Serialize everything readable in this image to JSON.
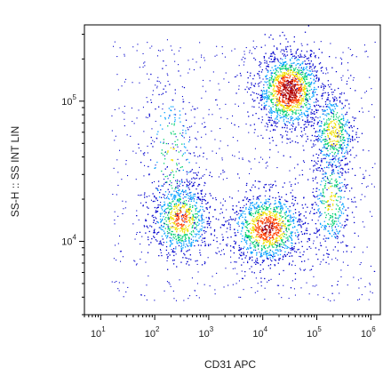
{
  "chart_data": {
    "type": "scatter",
    "subtype": "flow-cytometry-density-dot-plot",
    "title": "",
    "xlabel": "CD31 APC",
    "ylabel": "SS-H :: SS INT LIN",
    "x_scale": "log",
    "y_scale": "log",
    "xlim": [
      5,
      1500000
    ],
    "ylim": [
      3000,
      350000
    ],
    "x_ticks": [
      {
        "value": 10,
        "base": "10",
        "exp": "1"
      },
      {
        "value": 100,
        "base": "10",
        "exp": "2"
      },
      {
        "value": 1000,
        "base": "10",
        "exp": "3"
      },
      {
        "value": 10000,
        "base": "10",
        "exp": "4"
      },
      {
        "value": 100000,
        "base": "10",
        "exp": "5"
      },
      {
        "value": 1000000,
        "base": "10",
        "exp": "6"
      }
    ],
    "y_ticks": [
      {
        "value": 10000,
        "base": "10",
        "exp": "4"
      },
      {
        "value": 100000,
        "base": "10",
        "exp": "5"
      }
    ],
    "grid": false,
    "legend": "none",
    "color_scale": [
      "#0000cc",
      "#00a0ff",
      "#00d070",
      "#f0e000",
      "#ff4000",
      "#b00000"
    ],
    "populations": [
      {
        "x_center": 30000,
        "y_center": 120000,
        "x_spread_decades": 0.3,
        "y_spread_decades": 0.14,
        "relative_density": 1.0
      },
      {
        "x_center": 12000,
        "y_center": 12500,
        "x_spread_decades": 0.35,
        "y_spread_decades": 0.13,
        "relative_density": 0.8
      },
      {
        "x_center": 300,
        "y_center": 14500,
        "x_spread_decades": 0.28,
        "y_spread_decades": 0.14,
        "relative_density": 0.55
      },
      {
        "x_center": 200000,
        "y_center": 60000,
        "x_spread_decades": 0.2,
        "y_spread_decades": 0.15,
        "relative_density": 0.35
      },
      {
        "x_center": 200,
        "y_center": 40000,
        "x_spread_decades": 0.25,
        "y_spread_decades": 0.3,
        "relative_density": 0.15
      },
      {
        "x_center": 180000,
        "y_center": 20000,
        "x_spread_decades": 0.18,
        "y_spread_decades": 0.2,
        "relative_density": 0.25
      }
    ]
  }
}
